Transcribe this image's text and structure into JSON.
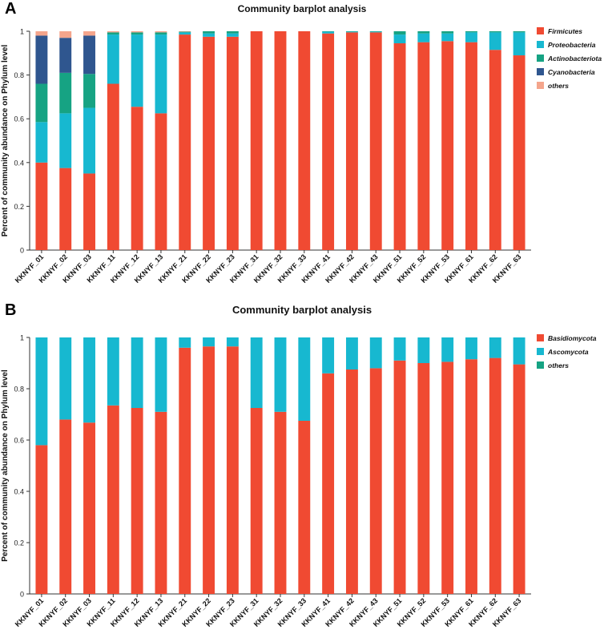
{
  "panels": [
    {
      "label": "A"
    },
    {
      "label": "B"
    }
  ],
  "chart_data": [
    {
      "type": "bar",
      "stacked": true,
      "title": "Community barplot analysis",
      "xlabel": "",
      "ylabel": "Percent of community abundance on Phylum level",
      "ylim": [
        0,
        1
      ],
      "yticks": [
        "0",
        "0.2",
        "0.4",
        "0.6",
        "0.8",
        "1"
      ],
      "categories": [
        "KKNYF_01",
        "KKNYF_02",
        "KKNYF_03",
        "KKNYF_11",
        "KKNYF_12",
        "KKNYF_13",
        "KKNYF_21",
        "KKNYF_22",
        "KKNYF_23",
        "KKNYF_31",
        "KKNYF_32",
        "KKNYF_33",
        "KKNYF_41",
        "KKNYF_42",
        "KKNYF_43",
        "KKNYF_51",
        "KKNYF_52",
        "KKNYF_53",
        "KKNYF_61",
        "KKNYF_62",
        "KKNYF_63"
      ],
      "series": [
        {
          "name": "Firmicutes",
          "color": "#f04a32",
          "values": [
            0.4,
            0.375,
            0.35,
            0.76,
            0.655,
            0.625,
            0.985,
            0.975,
            0.975,
            1.0,
            1.0,
            1.0,
            0.99,
            0.995,
            0.995,
            0.945,
            0.95,
            0.955,
            0.95,
            0.915,
            0.89
          ]
        },
        {
          "name": "Proteobacteria",
          "color": "#17b8d0",
          "values": [
            0.185,
            0.25,
            0.3,
            0.225,
            0.33,
            0.36,
            0.01,
            0.015,
            0.015,
            0.0,
            0.0,
            0.0,
            0.008,
            0.003,
            0.003,
            0.04,
            0.04,
            0.035,
            0.045,
            0.08,
            0.105
          ]
        },
        {
          "name": "Actinobacteriota",
          "color": "#16a383",
          "values": [
            0.175,
            0.185,
            0.155,
            0.01,
            0.01,
            0.01,
            0.003,
            0.01,
            0.01,
            0.0,
            0.0,
            0.0,
            0.002,
            0.002,
            0.002,
            0.015,
            0.01,
            0.01,
            0.005,
            0.005,
            0.005
          ]
        },
        {
          "name": "Cyanobacteria",
          "color": "#2f568f",
          "values": [
            0.22,
            0.16,
            0.175,
            0.0,
            0.0,
            0.0,
            0.0,
            0.0,
            0.0,
            0.0,
            0.0,
            0.0,
            0.0,
            0.0,
            0.0,
            0.0,
            0.0,
            0.0,
            0.0,
            0.0,
            0.0
          ]
        },
        {
          "name": "others",
          "color": "#f4a58c",
          "values": [
            0.02,
            0.03,
            0.02,
            0.005,
            0.005,
            0.005,
            0.002,
            0.0,
            0.0,
            0.0,
            0.0,
            0.0,
            0.0,
            0.0,
            0.0,
            0.0,
            0.0,
            0.0,
            0.0,
            0.0,
            0.0
          ]
        }
      ],
      "legend_position": "top-right"
    },
    {
      "type": "bar",
      "stacked": true,
      "title": "Community barplot analysis",
      "xlabel": "",
      "ylabel": "Percent of community abundance on Phylum level",
      "ylim": [
        0,
        1
      ],
      "yticks": [
        "0",
        "0.2",
        "0.4",
        "0.6",
        "0.8",
        "1"
      ],
      "categories": [
        "KKNYF_01",
        "KKNYF_02",
        "KKNYF_03",
        "KKNYF_11",
        "KKNYF_12",
        "KKNYF_13",
        "KKNYF_21",
        "KKNYF_22",
        "KKNYF_23",
        "KKNYF_31",
        "KKNYF_32",
        "KKNYF_33",
        "KKNYF_41",
        "KKNYF_42",
        "KKNYF_43",
        "KKNYF_51",
        "KKNYF_52",
        "KKNYF_53",
        "KKNYF_61",
        "KKNYF_62",
        "KKNYF_63"
      ],
      "series": [
        {
          "name": "Basidiomycota",
          "color": "#f04a32",
          "values": [
            0.58,
            0.68,
            0.668,
            0.735,
            0.725,
            0.71,
            0.96,
            0.965,
            0.965,
            0.725,
            0.71,
            0.675,
            0.86,
            0.875,
            0.88,
            0.91,
            0.9,
            0.905,
            0.915,
            0.92,
            0.895
          ]
        },
        {
          "name": "Ascomycota",
          "color": "#17b8d0",
          "values": [
            0.42,
            0.32,
            0.332,
            0.265,
            0.275,
            0.29,
            0.04,
            0.035,
            0.035,
            0.275,
            0.29,
            0.325,
            0.14,
            0.125,
            0.12,
            0.09,
            0.1,
            0.095,
            0.085,
            0.08,
            0.105
          ]
        },
        {
          "name": "others",
          "color": "#16a383",
          "values": [
            0,
            0,
            0,
            0,
            0,
            0,
            0,
            0,
            0,
            0,
            0,
            0,
            0,
            0,
            0,
            0,
            0,
            0,
            0,
            0,
            0
          ]
        }
      ],
      "legend_position": "top-right"
    }
  ]
}
